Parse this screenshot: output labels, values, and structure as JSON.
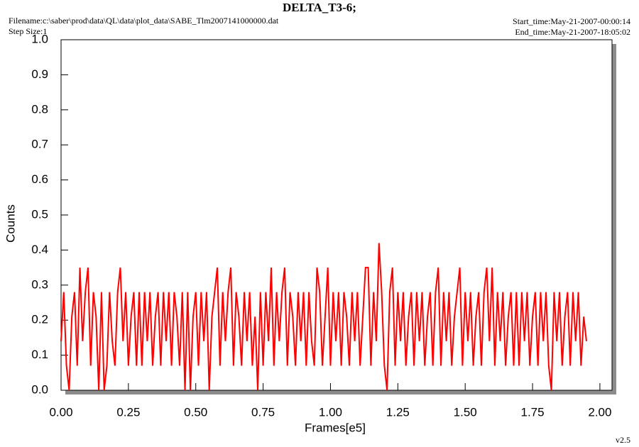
{
  "chart_data": {
    "type": "line",
    "title": "DELTA_T3-6;",
    "filename": "Filename:c:\\saber\\prod\\data\\QL\\data\\plot_data\\SABE_Tlm2007141000000.dat",
    "step_size": "Step Size:1",
    "start_time": "Start_time:May-21-2007-00:00:14",
    "end_time": "End_time:May-21-2007-18:05:02",
    "version": "v2.5",
    "xlabel": "Frames[e5]",
    "ylabel": "Counts",
    "xlim": [
      0,
      2.045
    ],
    "ylim": [
      0,
      1.0
    ],
    "xticks": [
      {
        "value": 0,
        "label": "0.00"
      },
      {
        "value": 0.25,
        "label": "0.25"
      },
      {
        "value": 0.5,
        "label": "0.50"
      },
      {
        "value": 0.75,
        "label": "0.75"
      },
      {
        "value": 1,
        "label": "1.00"
      },
      {
        "value": 1.25,
        "label": "1.25"
      },
      {
        "value": 1.5,
        "label": "1.50"
      },
      {
        "value": 1.75,
        "label": "1.75"
      },
      {
        "value": 2,
        "label": "2.00"
      }
    ],
    "yticks": [
      {
        "value": 0,
        "label": "0.0"
      },
      0.1,
      0.2,
      0.3,
      0.4,
      0.5,
      0.6,
      0.7,
      0.8,
      0.9,
      {
        "value": 1,
        "label": "1.0"
      }
    ],
    "color": "#ff0000",
    "x": [
      0,
      0.01,
      0.02,
      0.03,
      0.04,
      0.05,
      0.06,
      0.07,
      0.08,
      0.09,
      0.1,
      0.11,
      0.12,
      0.13,
      0.14,
      0.15,
      0.16,
      0.17,
      0.18,
      0.19,
      0.2,
      0.21,
      0.22,
      0.23,
      0.24,
      0.25,
      0.26,
      0.27,
      0.28,
      0.29,
      0.3,
      0.31,
      0.32,
      0.33,
      0.34,
      0.35,
      0.36,
      0.37,
      0.38,
      0.39,
      0.4,
      0.41,
      0.42,
      0.43,
      0.44,
      0.45,
      0.46,
      0.47,
      0.48,
      0.49,
      0.5,
      0.51,
      0.52,
      0.53,
      0.54,
      0.55,
      0.56,
      0.57,
      0.58,
      0.59,
      0.6,
      0.61,
      0.62,
      0.63,
      0.64,
      0.65,
      0.66,
      0.67,
      0.68,
      0.69,
      0.7,
      0.71,
      0.72,
      0.73,
      0.74,
      0.75,
      0.76,
      0.77,
      0.78,
      0.79,
      0.8,
      0.81,
      0.82,
      0.83,
      0.84,
      0.85,
      0.86,
      0.87,
      0.88,
      0.89,
      0.9,
      0.91,
      0.92,
      0.93,
      0.94,
      0.95,
      0.96,
      0.97,
      0.98,
      0.99,
      1,
      1.01,
      1.02,
      1.03,
      1.04,
      1.05,
      1.06,
      1.07,
      1.08,
      1.09,
      1.1,
      1.11,
      1.12,
      1.13,
      1.14,
      1.15,
      1.16,
      1.17,
      1.18,
      1.19,
      1.2,
      1.21,
      1.22,
      1.23,
      1.24,
      1.25,
      1.26,
      1.27,
      1.28,
      1.29,
      1.3,
      1.31,
      1.32,
      1.33,
      1.34,
      1.35,
      1.36,
      1.37,
      1.38,
      1.39,
      1.4,
      1.41,
      1.42,
      1.43,
      1.44,
      1.45,
      1.46,
      1.47,
      1.48,
      1.49,
      1.5,
      1.51,
      1.52,
      1.53,
      1.54,
      1.55,
      1.56,
      1.57,
      1.58,
      1.59,
      1.6,
      1.61,
      1.62,
      1.63,
      1.64,
      1.65,
      1.66,
      1.67,
      1.68,
      1.69,
      1.7,
      1.71,
      1.72,
      1.73,
      1.74,
      1.75,
      1.76,
      1.77,
      1.78,
      1.79,
      1.8,
      1.81,
      1.82,
      1.83,
      1.84,
      1.85,
      1.86,
      1.87,
      1.88,
      1.89,
      1.9,
      1.91,
      1.92,
      1.93,
      1.94,
      1.95
    ],
    "values": [
      0.14,
      0.28,
      0.07,
      0.0,
      0.21,
      0.28,
      0.07,
      0.35,
      0.14,
      0.28,
      0.35,
      0.07,
      0.28,
      0.21,
      0.0,
      0.28,
      0.0,
      0.07,
      0.28,
      0.14,
      0.07,
      0.28,
      0.35,
      0.14,
      0.28,
      0.07,
      0.21,
      0.28,
      0.07,
      0.28,
      0.07,
      0.28,
      0.14,
      0.28,
      0.07,
      0.21,
      0.28,
      0.07,
      0.28,
      0.14,
      0.28,
      0.07,
      0.28,
      0.21,
      0.07,
      0.28,
      0.0,
      0.28,
      0.0,
      0.21,
      0.28,
      0.07,
      0.28,
      0.14,
      0.28,
      0.0,
      0.21,
      0.28,
      0.35,
      0.07,
      0.28,
      0.14,
      0.28,
      0.35,
      0.07,
      0.28,
      0.21,
      0.07,
      0.28,
      0.14,
      0.28,
      0.07,
      0.21,
      0.0,
      0.28,
      0.07,
      0.28,
      0.14,
      0.35,
      0.07,
      0.28,
      0.14,
      0.28,
      0.35,
      0.07,
      0.28,
      0.21,
      0.07,
      0.28,
      0.14,
      0.28,
      0.07,
      0.28,
      0.14,
      0.07,
      0.35,
      0.28,
      0.07,
      0.21,
      0.35,
      0.07,
      0.28,
      0.14,
      0.28,
      0.07,
      0.28,
      0.21,
      0.07,
      0.28,
      0.14,
      0.28,
      0.07,
      0.21,
      0.35,
      0.35,
      0.07,
      0.28,
      0.14,
      0.42,
      0.28,
      0.07,
      0.0,
      0.28,
      0.35,
      0.07,
      0.28,
      0.14,
      0.28,
      0.07,
      0.21,
      0.28,
      0.07,
      0.28,
      0.14,
      0.28,
      0.07,
      0.21,
      0.28,
      0.07,
      0.28,
      0.35,
      0.07,
      0.28,
      0.14,
      0.28,
      0.07,
      0.21,
      0.28,
      0.35,
      0.07,
      0.28,
      0.14,
      0.28,
      0.07,
      0.21,
      0.28,
      0.07,
      0.28,
      0.35,
      0.14,
      0.35,
      0.07,
      0.28,
      0.14,
      0.28,
      0.07,
      0.21,
      0.28,
      0.07,
      0.28,
      0.07,
      0.28,
      0.14,
      0.28,
      0.07,
      0.21,
      0.28,
      0.07,
      0.28,
      0.14,
      0.28,
      0.07,
      0.0,
      0.28,
      0.14,
      0.28,
      0.07,
      0.21,
      0.28,
      0.07,
      0.28,
      0.14,
      0.28,
      0.07,
      0.21,
      0.14
    ]
  }
}
